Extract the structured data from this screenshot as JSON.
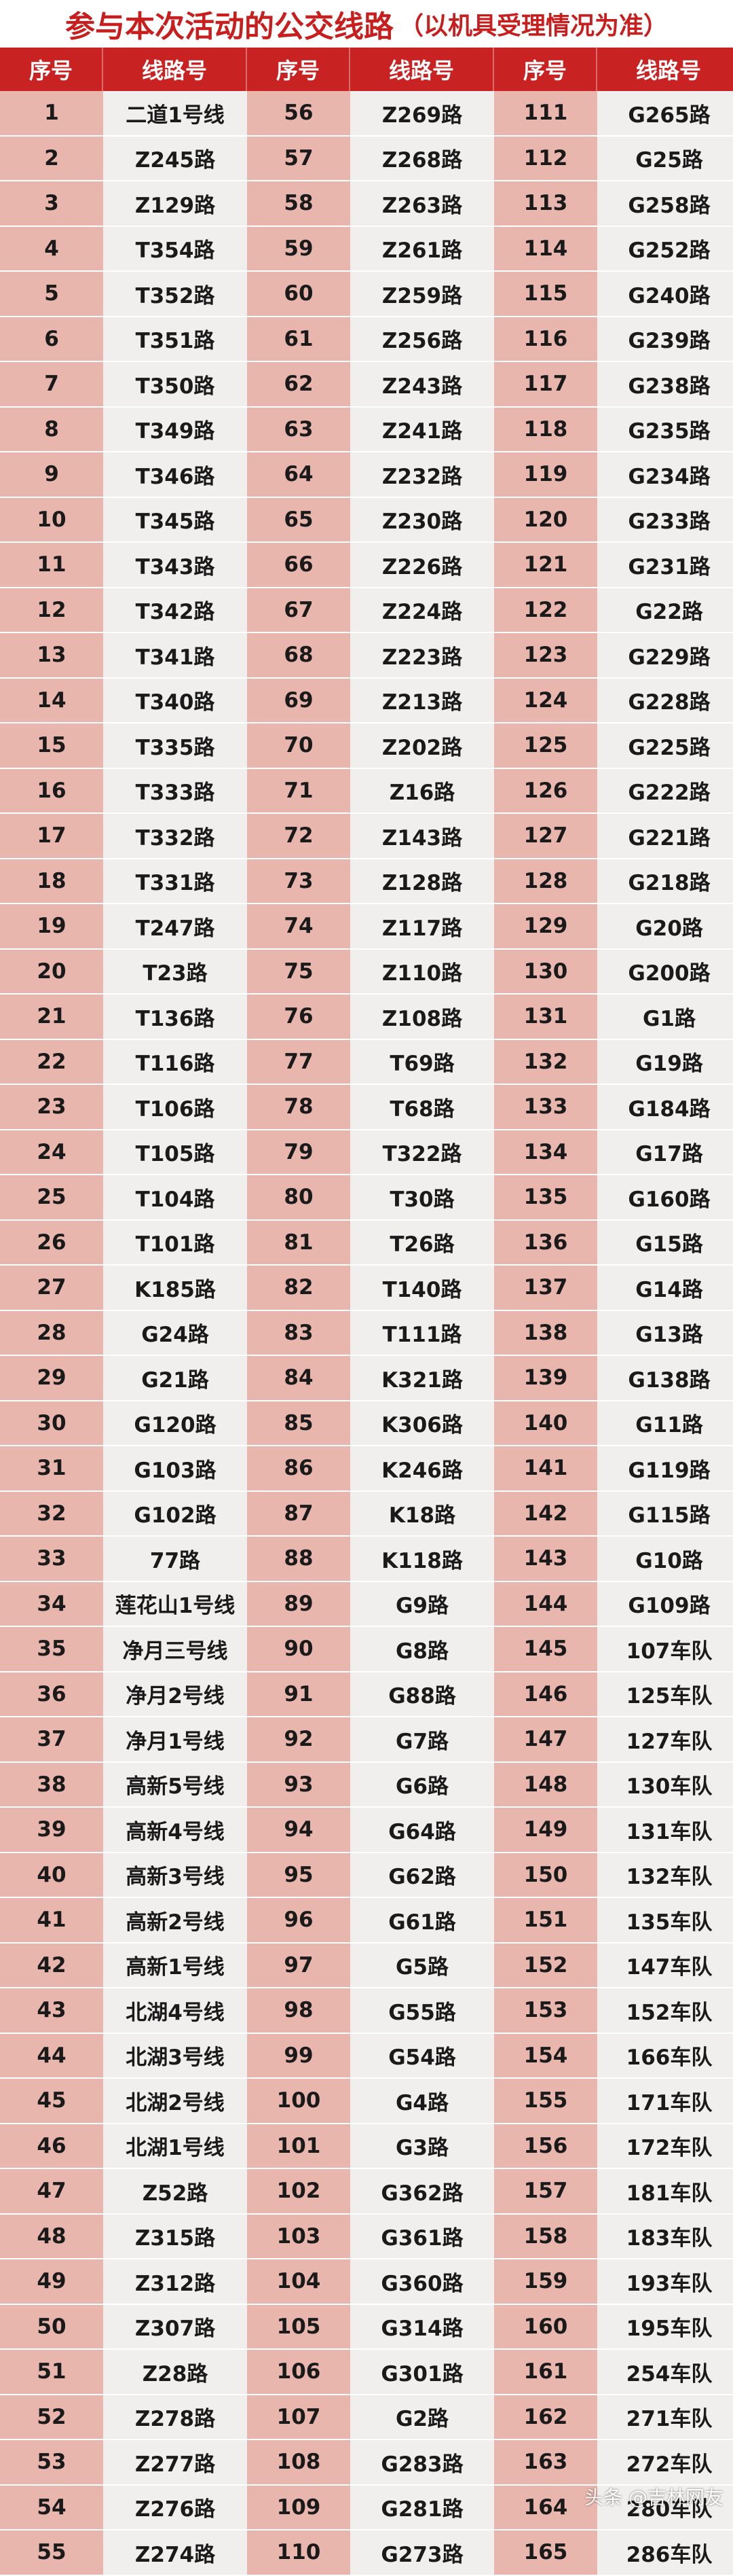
{
  "title": {
    "main": "参与本次活动的公交线路",
    "note": "（以机具受理情况为准）"
  },
  "headers": [
    "序号",
    "线路号",
    "序号",
    "线路号",
    "序号",
    "线路号"
  ],
  "rows": [
    [
      "1",
      "二道1号线",
      "56",
      "Z269路",
      "111",
      "G265路"
    ],
    [
      "2",
      "Z245路",
      "57",
      "Z268路",
      "112",
      "G25路"
    ],
    [
      "3",
      "Z129路",
      "58",
      "Z263路",
      "113",
      "G258路"
    ],
    [
      "4",
      "T354路",
      "59",
      "Z261路",
      "114",
      "G252路"
    ],
    [
      "5",
      "T352路",
      "60",
      "Z259路",
      "115",
      "G240路"
    ],
    [
      "6",
      "T351路",
      "61",
      "Z256路",
      "116",
      "G239路"
    ],
    [
      "7",
      "T350路",
      "62",
      "Z243路",
      "117",
      "G238路"
    ],
    [
      "8",
      "T349路",
      "63",
      "Z241路",
      "118",
      "G235路"
    ],
    [
      "9",
      "T346路",
      "64",
      "Z232路",
      "119",
      "G234路"
    ],
    [
      "10",
      "T345路",
      "65",
      "Z230路",
      "120",
      "G233路"
    ],
    [
      "11",
      "T343路",
      "66",
      "Z226路",
      "121",
      "G231路"
    ],
    [
      "12",
      "T342路",
      "67",
      "Z224路",
      "122",
      "G22路"
    ],
    [
      "13",
      "T341路",
      "68",
      "Z223路",
      "123",
      "G229路"
    ],
    [
      "14",
      "T340路",
      "69",
      "Z213路",
      "124",
      "G228路"
    ],
    [
      "15",
      "T335路",
      "70",
      "Z202路",
      "125",
      "G225路"
    ],
    [
      "16",
      "T333路",
      "71",
      "Z16路",
      "126",
      "G222路"
    ],
    [
      "17",
      "T332路",
      "72",
      "Z143路",
      "127",
      "G221路"
    ],
    [
      "18",
      "T331路",
      "73",
      "Z128路",
      "128",
      "G218路"
    ],
    [
      "19",
      "T247路",
      "74",
      "Z117路",
      "129",
      "G20路"
    ],
    [
      "20",
      "T23路",
      "75",
      "Z110路",
      "130",
      "G200路"
    ],
    [
      "21",
      "T136路",
      "76",
      "Z108路",
      "131",
      "G1路"
    ],
    [
      "22",
      "T116路",
      "77",
      "T69路",
      "132",
      "G19路"
    ],
    [
      "23",
      "T106路",
      "78",
      "T68路",
      "133",
      "G184路"
    ],
    [
      "24",
      "T105路",
      "79",
      "T322路",
      "134",
      "G17路"
    ],
    [
      "25",
      "T104路",
      "80",
      "T30路",
      "135",
      "G160路"
    ],
    [
      "26",
      "T101路",
      "81",
      "T26路",
      "136",
      "G15路"
    ],
    [
      "27",
      "K185路",
      "82",
      "T140路",
      "137",
      "G14路"
    ],
    [
      "28",
      "G24路",
      "83",
      "T111路",
      "138",
      "G13路"
    ],
    [
      "29",
      "G21路",
      "84",
      "K321路",
      "139",
      "G138路"
    ],
    [
      "30",
      "G120路",
      "85",
      "K306路",
      "140",
      "G11路"
    ],
    [
      "31",
      "G103路",
      "86",
      "K246路",
      "141",
      "G119路"
    ],
    [
      "32",
      "G102路",
      "87",
      "K18路",
      "142",
      "G115路"
    ],
    [
      "33",
      "77路",
      "88",
      "K118路",
      "143",
      "G10路"
    ],
    [
      "34",
      "莲花山1号线",
      "89",
      "G9路",
      "144",
      "G109路"
    ],
    [
      "35",
      "净月三号线",
      "90",
      "G8路",
      "145",
      "107车队"
    ],
    [
      "36",
      "净月2号线",
      "91",
      "G88路",
      "146",
      "125车队"
    ],
    [
      "37",
      "净月1号线",
      "92",
      "G7路",
      "147",
      "127车队"
    ],
    [
      "38",
      "高新5号线",
      "93",
      "G6路",
      "148",
      "130车队"
    ],
    [
      "39",
      "高新4号线",
      "94",
      "G64路",
      "149",
      "131车队"
    ],
    [
      "40",
      "高新3号线",
      "95",
      "G62路",
      "150",
      "132车队"
    ],
    [
      "41",
      "高新2号线",
      "96",
      "G61路",
      "151",
      "135车队"
    ],
    [
      "42",
      "高新1号线",
      "97",
      "G5路",
      "152",
      "147车队"
    ],
    [
      "43",
      "北湖4号线",
      "98",
      "G55路",
      "153",
      "152车队"
    ],
    [
      "44",
      "北湖3号线",
      "99",
      "G54路",
      "154",
      "166车队"
    ],
    [
      "45",
      "北湖2号线",
      "100",
      "G4路",
      "155",
      "171车队"
    ],
    [
      "46",
      "北湖1号线",
      "101",
      "G3路",
      "156",
      "172车队"
    ],
    [
      "47",
      "Z52路",
      "102",
      "G362路",
      "157",
      "181车队"
    ],
    [
      "48",
      "Z315路",
      "103",
      "G361路",
      "158",
      "183车队"
    ],
    [
      "49",
      "Z312路",
      "104",
      "G360路",
      "159",
      "193车队"
    ],
    [
      "50",
      "Z307路",
      "105",
      "G314路",
      "160",
      "195车队"
    ],
    [
      "51",
      "Z28路",
      "106",
      "G301路",
      "161",
      "254车队"
    ],
    [
      "52",
      "Z278路",
      "107",
      "G2路",
      "162",
      "271车队"
    ],
    [
      "53",
      "Z277路",
      "108",
      "G283路",
      "163",
      "272车队"
    ],
    [
      "54",
      "Z276路",
      "109",
      "G281路",
      "164",
      "280车队"
    ],
    [
      "55",
      "Z274路",
      "110",
      "G273路",
      "165",
      "286车队"
    ]
  ],
  "watermark": "头条 @吉林网友",
  "colors": {
    "header_red": "#c82222",
    "title_red": "#c81e1e",
    "num_pink": "#e9b6ae",
    "name_grey": "#f1efee"
  }
}
